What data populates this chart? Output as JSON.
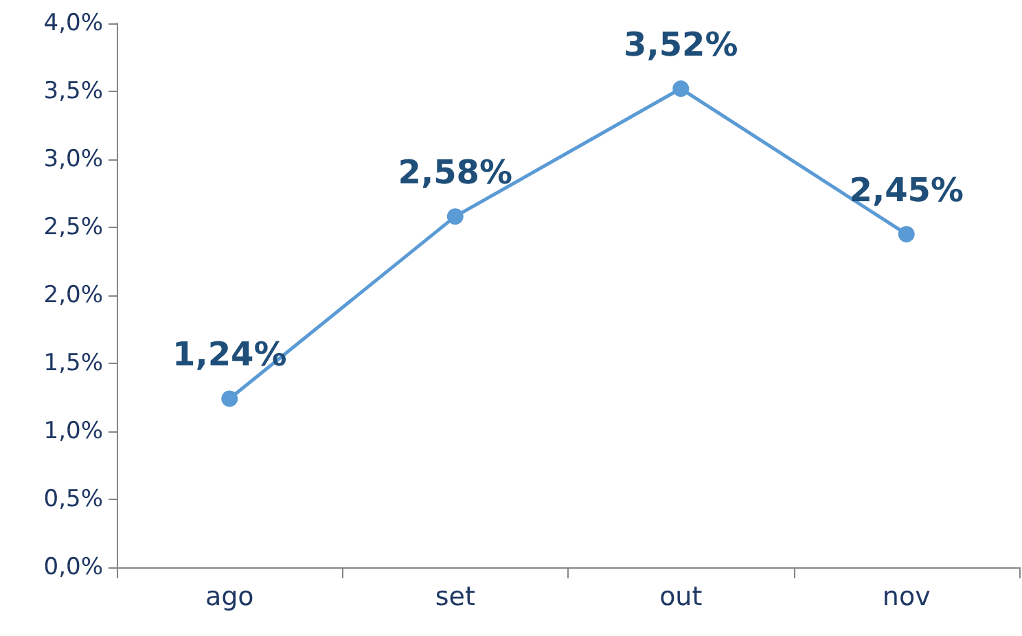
{
  "chart_data": {
    "type": "line",
    "categories": [
      "ago",
      "set",
      "out",
      "nov"
    ],
    "series": [
      {
        "color": "#5b9bd5",
        "values": [
          1.24,
          2.58,
          3.52,
          2.45
        ],
        "value_labels": [
          "1,24%",
          "2,58%",
          "3,52%",
          "2,45%"
        ]
      }
    ],
    "ylim": [
      0,
      4
    ],
    "yticks": [
      {
        "value": 0,
        "label": "0,0%"
      },
      {
        "value": 0.5,
        "label": "0,5%"
      },
      {
        "value": 1,
        "label": "1,0%"
      },
      {
        "value": 1.5,
        "label": "1,5%"
      },
      {
        "value": 2,
        "label": "2,0%"
      },
      {
        "value": 2.5,
        "label": "2,5%"
      },
      {
        "value": 3,
        "label": "3,0%"
      },
      {
        "value": 3.5,
        "label": "3,5%"
      },
      {
        "value": 4,
        "label": "4,0%"
      }
    ],
    "grid": false,
    "marker": "circle",
    "line_style": "solid"
  }
}
